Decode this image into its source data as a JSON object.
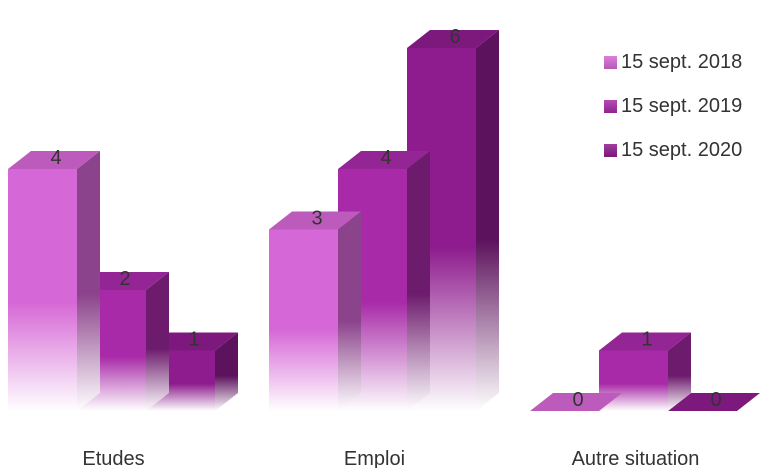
{
  "chart_data": {
    "type": "bar",
    "style": "3d-grouped",
    "title": "",
    "xlabel": "",
    "ylabel": "",
    "ylim": [
      0,
      6
    ],
    "grid": false,
    "legend_position": "top-right",
    "categories": [
      "Etudes",
      "Emploi",
      "Autre situation"
    ],
    "series": [
      {
        "name": "15 sept. 2018",
        "values": [
          4,
          3,
          0
        ],
        "color": "#d667d6"
      },
      {
        "name": "15 sept. 2019",
        "values": [
          2,
          4,
          1
        ],
        "color": "#a82aa8"
      },
      {
        "name": "15 sept. 2020",
        "values": [
          1,
          6,
          0
        ],
        "color": "#8e1c8e"
      }
    ]
  }
}
